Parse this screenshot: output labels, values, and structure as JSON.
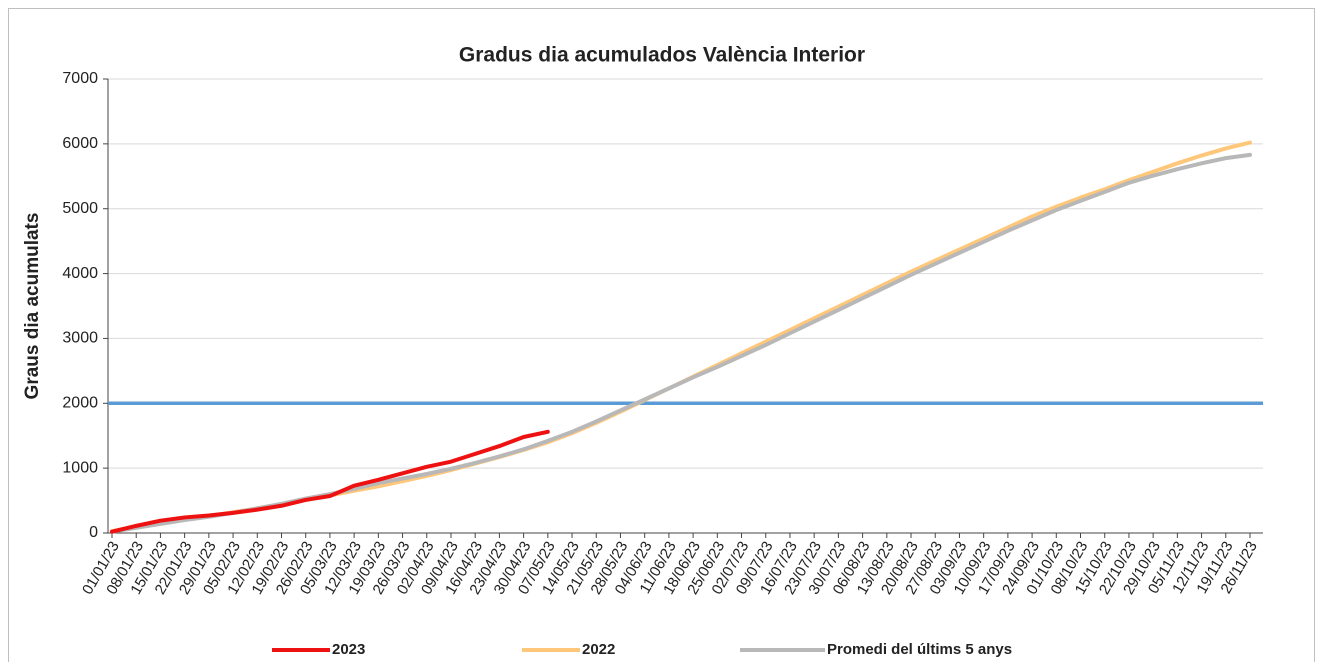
{
  "chart_data": {
    "type": "line",
    "title": "Gradus dia acumulados València Interior",
    "ylabel": "Graus dia acumulats",
    "categories": [
      "01/01/23",
      "08/01/23",
      "15/01/23",
      "22/01/23",
      "29/01/23",
      "05/02/23",
      "12/02/23",
      "19/02/23",
      "26/02/23",
      "05/03/23",
      "12/03/23",
      "19/03/23",
      "26/03/23",
      "02/04/23",
      "09/04/23",
      "16/04/23",
      "23/04/23",
      "30/04/23",
      "07/05/23",
      "14/05/23",
      "21/05/23",
      "28/05/23",
      "04/06/23",
      "11/06/23",
      "18/06/23",
      "25/06/23",
      "02/07/23",
      "09/07/23",
      "16/07/23",
      "23/07/23",
      "30/07/23",
      "06/08/23",
      "13/08/23",
      "20/08/23",
      "27/08/23",
      "03/09/23",
      "10/09/23",
      "17/09/23",
      "24/09/23",
      "01/10/23",
      "08/10/23",
      "15/10/23",
      "22/10/23",
      "29/10/23",
      "05/11/23",
      "12/11/23",
      "19/11/23",
      "26/11/23"
    ],
    "series": [
      {
        "name": "2022",
        "color": "#ffc77a",
        "values": [
          30,
          100,
          160,
          210,
          260,
          320,
          380,
          440,
          510,
          580,
          650,
          720,
          800,
          880,
          970,
          1070,
          1170,
          1280,
          1400,
          1540,
          1700,
          1870,
          2050,
          2230,
          2410,
          2590,
          2770,
          2950,
          3130,
          3310,
          3490,
          3670,
          3850,
          4030,
          4200,
          4370,
          4540,
          4710,
          4880,
          5030,
          5170,
          5300,
          5440,
          5570,
          5700,
          5820,
          5930,
          6020
        ]
      },
      {
        "name": "Promedi del últims 5 anys",
        "color": "#b8b8b8",
        "values": [
          20,
          80,
          140,
          200,
          250,
          310,
          380,
          450,
          530,
          600,
          680,
          770,
          840,
          910,
          990,
          1080,
          1180,
          1290,
          1420,
          1560,
          1720,
          1890,
          2060,
          2230,
          2400,
          2560,
          2730,
          2900,
          3080,
          3260,
          3440,
          3620,
          3800,
          3980,
          4150,
          4320,
          4490,
          4660,
          4820,
          4980,
          5120,
          5260,
          5400,
          5510,
          5610,
          5700,
          5780,
          5830
        ]
      },
      {
        "name": "2023",
        "color": "#ee1111",
        "values": [
          20,
          110,
          190,
          240,
          270,
          310,
          360,
          420,
          510,
          570,
          730,
          820,
          920,
          1020,
          1100,
          1220,
          1340,
          1480,
          1560,
          null,
          null,
          null,
          null,
          null,
          null,
          null,
          null,
          null,
          null,
          null,
          null,
          null,
          null,
          null,
          null,
          null,
          null,
          null,
          null,
          null,
          null,
          null,
          null,
          null,
          null,
          null,
          null,
          null
        ]
      }
    ],
    "legend_order": [
      2,
      0,
      1
    ],
    "reference_line": {
      "value": 2000,
      "color": "#5b9bd5"
    },
    "ylim": [
      0,
      7000
    ],
    "yticks": [
      0,
      1000,
      2000,
      3000,
      4000,
      5000,
      6000,
      7000
    ],
    "grid": true,
    "legend": "bottom"
  }
}
